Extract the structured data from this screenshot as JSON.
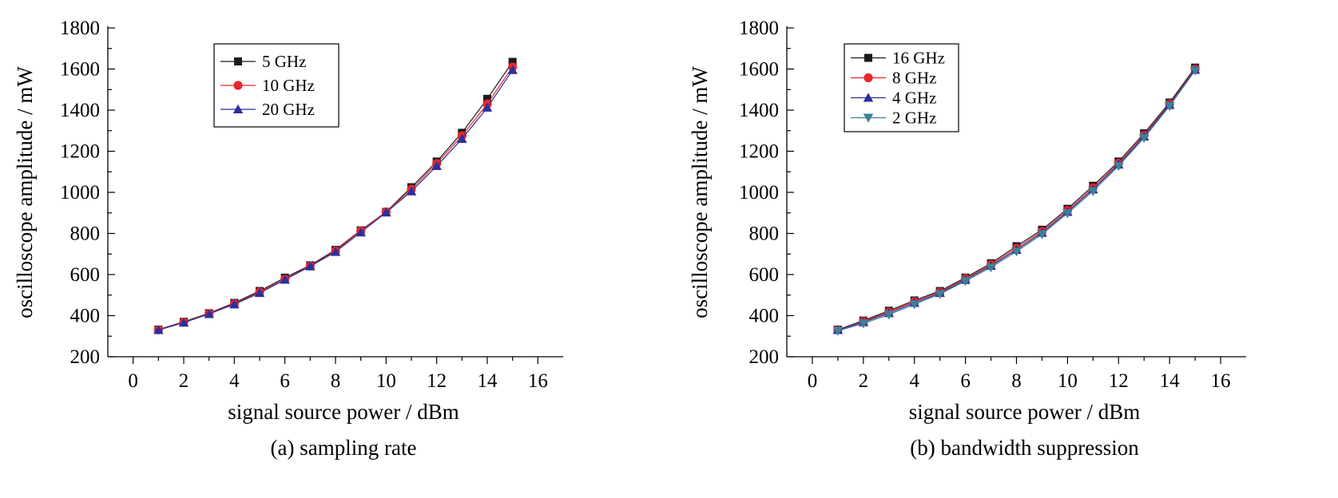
{
  "chart_data": [
    {
      "type": "line",
      "caption": "(a) sampling rate",
      "xlabel": "signal source power / dBm",
      "ylabel": "oscilloscope amplitude / mW",
      "xlim": [
        -1,
        17
      ],
      "ylim": [
        200,
        1800
      ],
      "xticks": [
        0,
        2,
        4,
        6,
        8,
        10,
        12,
        14,
        16
      ],
      "yticks": [
        200,
        400,
        600,
        800,
        1000,
        1200,
        1400,
        1600,
        1800
      ],
      "legend_position": "top-center",
      "x": [
        1,
        2,
        3,
        4,
        5,
        6,
        7,
        8,
        9,
        10,
        11,
        12,
        13,
        14,
        15
      ],
      "series": [
        {
          "name": "5 GHz",
          "color": "#1a1a1a",
          "marker": "square",
          "values": [
            332,
            370,
            412,
            462,
            520,
            585,
            645,
            720,
            815,
            905,
            1025,
            1150,
            1290,
            1455,
            1635
          ]
        },
        {
          "name": "10 GHz",
          "color": "#e8262b",
          "marker": "circle",
          "values": [
            331,
            368,
            410,
            458,
            515,
            578,
            642,
            715,
            812,
            905,
            1015,
            1140,
            1275,
            1430,
            1610
          ]
        },
        {
          "name": "20 GHz",
          "color": "#2c2f9a",
          "marker": "triangle-up",
          "values": [
            330,
            366,
            408,
            455,
            510,
            575,
            640,
            710,
            805,
            902,
            1005,
            1128,
            1260,
            1412,
            1595
          ]
        }
      ]
    },
    {
      "type": "line",
      "caption": "(b) bandwidth suppression",
      "xlabel": "signal source power / dBm",
      "ylabel": "oscilloscope amplitude / mW",
      "xlim": [
        -1,
        17
      ],
      "ylim": [
        200,
        1800
      ],
      "xticks": [
        0,
        2,
        4,
        6,
        8,
        10,
        12,
        14,
        16
      ],
      "yticks": [
        200,
        400,
        600,
        800,
        1000,
        1200,
        1400,
        1600,
        1800
      ],
      "legend_position": "top-left",
      "x": [
        1,
        2,
        3,
        4,
        5,
        6,
        7,
        8,
        9,
        10,
        11,
        12,
        13,
        14,
        15
      ],
      "series": [
        {
          "name": "16 GHz",
          "color": "#1a1a1a",
          "marker": "square",
          "values": [
            332,
            376,
            424,
            474,
            520,
            585,
            655,
            738,
            818,
            920,
            1032,
            1150,
            1287,
            1437,
            1607
          ]
        },
        {
          "name": "8 GHz",
          "color": "#e8262b",
          "marker": "circle",
          "values": [
            331,
            372,
            418,
            468,
            515,
            580,
            648,
            728,
            810,
            912,
            1022,
            1142,
            1278,
            1430,
            1600
          ]
        },
        {
          "name": "4 GHz",
          "color": "#2c2f9a",
          "marker": "triangle-up",
          "values": [
            330,
            368,
            412,
            462,
            510,
            574,
            642,
            720,
            803,
            905,
            1014,
            1135,
            1272,
            1425,
            1596
          ]
        },
        {
          "name": "2 GHz",
          "color": "#3d8099",
          "marker": "triangle-down",
          "values": [
            326,
            362,
            405,
            455,
            505,
            568,
            635,
            712,
            796,
            898,
            1006,
            1128,
            1265,
            1420,
            1592
          ]
        }
      ]
    }
  ]
}
